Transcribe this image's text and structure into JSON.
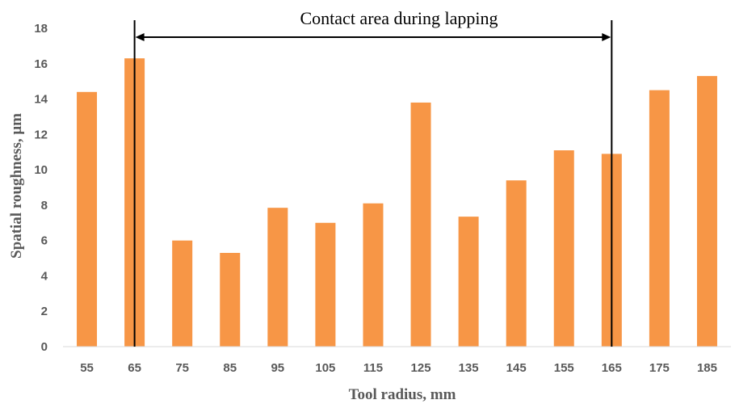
{
  "chart_data": {
    "type": "bar",
    "title": "",
    "xlabel": "Tool radius, mm",
    "ylabel": "Spatial roughness, μm",
    "categories": [
      "55",
      "65",
      "75",
      "85",
      "95",
      "105",
      "115",
      "125",
      "135",
      "145",
      "155",
      "165",
      "175",
      "185"
    ],
    "values": [
      14.4,
      16.3,
      6.0,
      5.3,
      7.85,
      7.0,
      8.1,
      13.8,
      7.35,
      9.4,
      11.1,
      10.9,
      14.5,
      15.3
    ],
    "ylim": [
      0,
      18
    ],
    "yticks": [
      "0",
      "2",
      "4",
      "6",
      "8",
      "10",
      "12",
      "14",
      "16",
      "18"
    ],
    "grid": false,
    "legend": "none",
    "bar_color": "#F79646",
    "annotation": {
      "text": "Contact area during lapping",
      "from_category": "65",
      "to_category": "165"
    }
  }
}
